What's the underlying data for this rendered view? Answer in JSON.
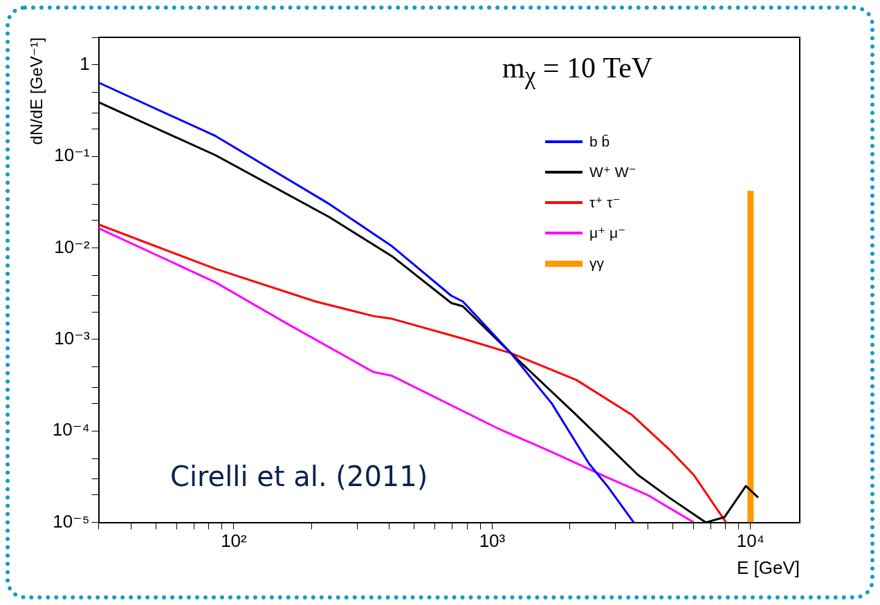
{
  "chart_data": {
    "type": "line",
    "xlabel": "E [GeV]",
    "ylabel": "dN/dE [GeV⁻¹]",
    "log": "xy",
    "legend": "top right",
    "xlim": [
      30,
      15500
    ],
    "ylim": [
      1e-05,
      2
    ],
    "xticks": [
      {
        "value": 30,
        "label": null
      },
      {
        "value": 40,
        "label": null
      },
      {
        "value": 50,
        "label": null
      },
      {
        "value": 60,
        "label": null
      },
      {
        "value": 70,
        "label": null
      },
      {
        "value": 80,
        "label": null
      },
      {
        "value": 90,
        "label": null
      },
      {
        "value": 100,
        "label": "10²"
      },
      {
        "value": 200,
        "label": null
      },
      {
        "value": 300,
        "label": null
      },
      {
        "value": 400,
        "label": null
      },
      {
        "value": 500,
        "label": null
      },
      {
        "value": 600,
        "label": null
      },
      {
        "value": 700,
        "label": null
      },
      {
        "value": 800,
        "label": null
      },
      {
        "value": 900,
        "label": null
      },
      {
        "value": 1000,
        "label": "10³"
      },
      {
        "value": 2000,
        "label": null
      },
      {
        "value": 3000,
        "label": null
      },
      {
        "value": 4000,
        "label": null
      },
      {
        "value": 5000,
        "label": null
      },
      {
        "value": 6000,
        "label": null
      },
      {
        "value": 7000,
        "label": null
      },
      {
        "value": 8000,
        "label": null
      },
      {
        "value": 9000,
        "label": null
      },
      {
        "value": 10000,
        "label": "10⁴"
      }
    ],
    "yticks": [
      {
        "value": 1e-05,
        "label": "10⁻⁵"
      },
      {
        "value": 2e-05,
        "label": null
      },
      {
        "value": 3e-05,
        "label": null
      },
      {
        "value": 5e-05,
        "label": null
      },
      {
        "value": 0.0001,
        "label": "10⁻⁴"
      },
      {
        "value": 0.0002,
        "label": null
      },
      {
        "value": 0.0003,
        "label": null
      },
      {
        "value": 0.0005,
        "label": null
      },
      {
        "value": 0.001,
        "label": "10⁻³"
      },
      {
        "value": 0.002,
        "label": null
      },
      {
        "value": 0.003,
        "label": null
      },
      {
        "value": 0.005,
        "label": null
      },
      {
        "value": 0.01,
        "label": "10⁻²"
      },
      {
        "value": 0.02,
        "label": null
      },
      {
        "value": 0.03,
        "label": null
      },
      {
        "value": 0.05,
        "label": null
      },
      {
        "value": 0.1,
        "label": "10⁻¹"
      },
      {
        "value": 0.2,
        "label": null
      },
      {
        "value": 0.3,
        "label": null
      },
      {
        "value": 0.5,
        "label": null
      },
      {
        "value": 1,
        "label": "1"
      },
      {
        "value": 2,
        "label": null
      }
    ],
    "annotations": [
      "m$_{χ}$ = 10 TeV",
      "Cirelli et al. (2011)"
    ],
    "series": [
      {
        "name": "b b̄",
        "color": "#0000ff",
        "x": [
          30,
          85,
          235,
          410,
          695,
          770,
          1180,
          1700,
          2370,
          2790,
          3530
        ],
        "values": [
          0.64,
          0.167,
          0.03,
          0.0104,
          0.003,
          0.0026,
          0.00071,
          0.0002,
          4.4e-05,
          2.5e-05,
          1e-05
        ]
      },
      {
        "name": "W⁺ W⁻",
        "color": "#000000",
        "x": [
          30,
          85,
          235,
          410,
          695,
          770,
          1180,
          2120,
          3670,
          4840,
          6710,
          7920,
          9590,
          10700
        ],
        "values": [
          0.39,
          0.103,
          0.0216,
          0.0081,
          0.0025,
          0.0023,
          0.00071,
          0.000149,
          3.3e-05,
          1.87e-05,
          1e-05,
          1.14e-05,
          2.5e-05,
          1.87e-05
        ]
      },
      {
        "name": "τ⁺ τ⁻",
        "color": "#ff0000",
        "x": [
          30,
          85,
          207,
          347,
          410,
          770,
          1180,
          2120,
          3480,
          4840,
          6030,
          8040
        ],
        "values": [
          0.018,
          0.0059,
          0.0026,
          0.0018,
          0.00168,
          0.00102,
          0.00071,
          0.00036,
          0.000149,
          6.3e-05,
          3.3e-05,
          1e-05
        ]
      },
      {
        "name": "μ⁺ μ⁻",
        "color": "#ff00ff",
        "x": [
          30,
          85,
          160,
          347,
          410,
          1070,
          1700,
          2790,
          3990,
          6030
        ],
        "values": [
          0.0164,
          0.0042,
          0.0015,
          0.00044,
          0.0004,
          0.000104,
          5.9e-05,
          3.1e-05,
          2e-05,
          1e-05
        ]
      },
      {
        "name": "γγ",
        "color": "#ff9900",
        "x": [
          10000,
          10000
        ],
        "values": [
          1e-05,
          0.042
        ]
      }
    ]
  }
}
